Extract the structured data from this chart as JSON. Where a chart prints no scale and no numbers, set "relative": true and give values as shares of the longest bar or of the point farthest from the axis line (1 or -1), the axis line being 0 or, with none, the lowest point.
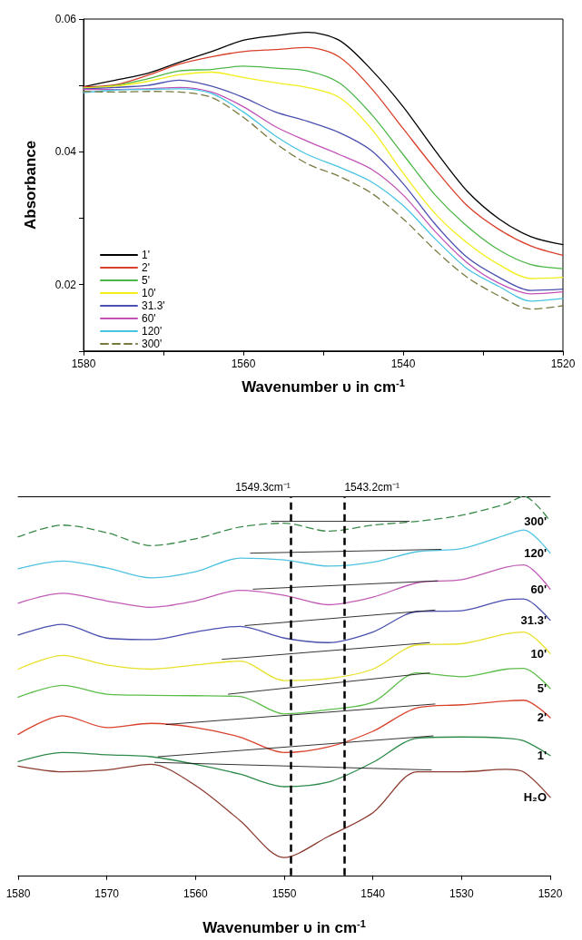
{
  "chart_data": [
    {
      "type": "line",
      "xlabel": "Wavenumber υ in cm$^{-1}$",
      "ylabel": "Absorbance",
      "x": [
        1580,
        1576,
        1572,
        1568,
        1564,
        1560,
        1556,
        1552,
        1548,
        1544,
        1540,
        1536,
        1532,
        1528,
        1524,
        1520
      ],
      "xlim": [
        1580,
        1520
      ],
      "ylim": [
        0.01,
        0.06
      ],
      "xticks": [
        1580,
        {
          "value": 1570,
          "label": null
        },
        1560,
        {
          "value": 1550,
          "label": null
        },
        1540,
        {
          "value": 1530,
          "label": null
        },
        1520
      ],
      "yticks": [
        {
          "value": 0.01,
          "label": null
        },
        0.02,
        {
          "value": 0.03,
          "label": null
        },
        0.04,
        {
          "value": 0.05,
          "label": null
        },
        0.06
      ],
      "grid": false,
      "legend": "bottom left",
      "marker": "none",
      "line_style": "solid",
      "series": [
        {
          "name": "1'",
          "color": "#000000",
          "values": [
            0.0498,
            0.0508,
            0.0518,
            0.0535,
            0.0551,
            0.0568,
            0.0575,
            0.058,
            0.0568,
            0.0524,
            0.0468,
            0.0402,
            0.0341,
            0.0299,
            0.0272,
            0.026
          ]
        },
        {
          "name": "2'",
          "color": "#d9412b",
          "values": [
            0.0498,
            0.0501,
            0.0515,
            0.0532,
            0.0543,
            0.0551,
            0.0554,
            0.0557,
            0.0543,
            0.0496,
            0.0435,
            0.0374,
            0.0319,
            0.0283,
            0.0258,
            0.0244
          ]
        },
        {
          "name": "5'",
          "color": "#4db848",
          "values": [
            0.0496,
            0.05,
            0.051,
            0.0522,
            0.0524,
            0.0529,
            0.0526,
            0.0522,
            0.0504,
            0.0457,
            0.0396,
            0.0335,
            0.0288,
            0.0252,
            0.023,
            0.0224
          ]
        },
        {
          "name": "10'",
          "color": "#f2ee1a",
          "values": [
            0.0496,
            0.0499,
            0.0506,
            0.0516,
            0.052,
            0.0512,
            0.0504,
            0.0497,
            0.0482,
            0.0435,
            0.0368,
            0.0307,
            0.0263,
            0.023,
            0.0209,
            0.0211
          ]
        },
        {
          "name": "31.3'",
          "color": "#4a4fb0",
          "values": [
            0.0495,
            0.0497,
            0.05,
            0.0508,
            0.0499,
            0.0482,
            0.046,
            0.0446,
            0.0429,
            0.0402,
            0.0352,
            0.0291,
            0.0241,
            0.0211,
            0.0191,
            0.0193
          ]
        },
        {
          "name": "60'",
          "color": "#c251b7",
          "values": [
            0.0494,
            0.0494,
            0.0495,
            0.0497,
            0.049,
            0.0468,
            0.0438,
            0.0416,
            0.0396,
            0.0374,
            0.0335,
            0.028,
            0.0233,
            0.0202,
            0.0186,
            0.0189
          ]
        },
        {
          "name": "120'",
          "color": "#48c4e3",
          "values": [
            0.0489,
            0.0493,
            0.0494,
            0.0495,
            0.0488,
            0.046,
            0.0424,
            0.0396,
            0.0377,
            0.0355,
            0.0319,
            0.0269,
            0.0224,
            0.0197,
            0.0175,
            0.0179
          ]
        },
        {
          "name": "300'",
          "color": "#7a7a40",
          "line_style": "dashed",
          "values": [
            0.0491,
            0.049,
            0.0491,
            0.049,
            0.0482,
            0.0452,
            0.0413,
            0.0382,
            0.0363,
            0.0338,
            0.0299,
            0.0252,
            0.0211,
            0.0183,
            0.0163,
            0.0168
          ]
        }
      ]
    },
    {
      "type": "line",
      "relative": true,
      "xlabel": "Wavenumber υ in cm$^{-1}$",
      "x": [
        1580,
        1575,
        1570,
        1565,
        1560,
        1555,
        1550,
        1545,
        1540,
        1535,
        1530,
        1525,
        1523,
        1520
      ],
      "xlim": [
        1580,
        1520
      ],
      "xticks": [
        1580,
        1570,
        1560,
        1550,
        1540,
        1530,
        1520
      ],
      "grid": false,
      "legend": false,
      "marker": "none",
      "line_style": "solid",
      "ref_lines": [
        {
          "axis": "x",
          "value": 1549.3,
          "label": "1549.3cm⁻¹",
          "color": "#000000",
          "line_style": "dashed"
        },
        {
          "axis": "x",
          "value": 1543.2,
          "label": "1543.2cm⁻¹",
          "color": "#000000",
          "line_style": "dashed"
        }
      ],
      "series": [
        {
          "name": "300'",
          "color": "#3a8a4a",
          "line_style": "dashed",
          "values": [
            0.893,
            0.924,
            0.904,
            0.87,
            0.888,
            0.919,
            0.929,
            0.908,
            0.924,
            0.934,
            0.95,
            0.98,
            1,
            0.934
          ]
        },
        {
          "name": "120'",
          "color": "#4fc3e0",
          "values": [
            0.809,
            0.829,
            0.811,
            0.785,
            0.801,
            0.837,
            0.832,
            0.816,
            0.826,
            0.854,
            0.862,
            0.898,
            0.911,
            0.85
          ]
        },
        {
          "name": "60'",
          "color": "#c25bb5",
          "values": [
            0.718,
            0.744,
            0.724,
            0.707,
            0.724,
            0.752,
            0.739,
            0.714,
            0.734,
            0.772,
            0.78,
            0.813,
            0.819,
            0.755
          ]
        },
        {
          "name": "31.3'",
          "color": "#4a4fb0",
          "values": [
            0.634,
            0.662,
            0.626,
            0.622,
            0.642,
            0.657,
            0.626,
            0.614,
            0.642,
            0.696,
            0.698,
            0.727,
            0.729,
            0.673
          ]
        },
        {
          "name": "10'",
          "color": "#e8e02a",
          "values": [
            0.544,
            0.58,
            0.555,
            0.544,
            0.555,
            0.565,
            0.514,
            0.519,
            0.544,
            0.608,
            0.611,
            0.637,
            0.642,
            0.585
          ]
        },
        {
          "name": "5'",
          "color": "#5cbd4a",
          "values": [
            0.47,
            0.501,
            0.478,
            0.475,
            0.474,
            0.472,
            0.426,
            0.437,
            0.457,
            0.534,
            0.524,
            0.544,
            0.546,
            0.493
          ]
        },
        {
          "name": "2'",
          "color": "#d9412b",
          "values": [
            0.372,
            0.421,
            0.39,
            0.401,
            0.39,
            0.365,
            0.324,
            0.339,
            0.38,
            0.442,
            0.45,
            0.46,
            0.462,
            0.416
          ]
        },
        {
          "name": "1'",
          "color": "#2e8b4a",
          "values": [
            0.3,
            0.324,
            0.318,
            0.313,
            0.293,
            0.267,
            0.234,
            0.246,
            0.298,
            0.362,
            0.365,
            0.362,
            0.355,
            0.316
          ]
        },
        {
          "name": "H₂O",
          "color": "#8b3a2e",
          "values": [
            0.288,
            0.273,
            0.278,
            0.293,
            0.237,
            0.145,
            0.047,
            0.103,
            0.165,
            0.273,
            0.273,
            0.28,
            0.273,
            0.206
          ]
        },
        {
          "type": "line",
          "color": "#000000",
          "x": [
            1551.4,
            1535.9
          ],
          "values": [
            0.934,
            0.934
          ]
        },
        {
          "type": "line",
          "color": "#000000",
          "x": [
            1553.8,
            1532.3
          ],
          "values": [
            0.85,
            0.86
          ]
        },
        {
          "type": "line",
          "color": "#000000",
          "x": [
            1553.5,
            1532.7
          ],
          "values": [
            0.755,
            0.777
          ]
        },
        {
          "type": "line",
          "color": "#000000",
          "x": [
            1554.4,
            1533
          ],
          "values": [
            0.659,
            0.7
          ]
        },
        {
          "type": "line",
          "color": "#000000",
          "x": [
            1557,
            1533.6
          ],
          "values": [
            0.57,
            0.614
          ]
        },
        {
          "type": "line",
          "color": "#000000",
          "x": [
            1556.3,
            1533.6
          ],
          "values": [
            0.478,
            0.534
          ]
        },
        {
          "type": "line",
          "color": "#000000",
          "x": [
            1563.3,
            1533
          ],
          "values": [
            0.398,
            0.452
          ]
        },
        {
          "type": "line",
          "color": "#000000",
          "x": [
            1564.2,
            1533.2
          ],
          "values": [
            0.313,
            0.368
          ]
        },
        {
          "type": "line",
          "color": "#000000",
          "x": [
            1564.6,
            1533.4
          ],
          "values": [
            0.298,
            0.278
          ]
        }
      ]
    }
  ]
}
